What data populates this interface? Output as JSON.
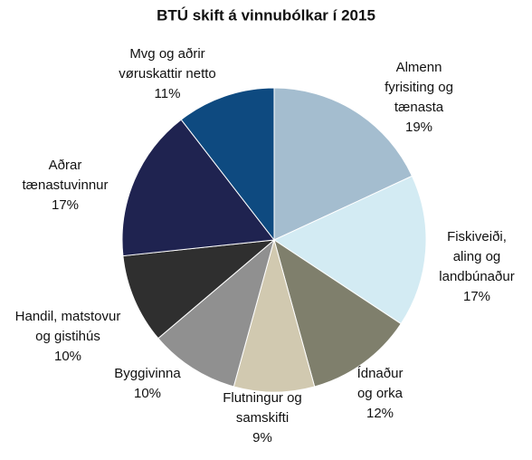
{
  "chart_data": {
    "type": "pie",
    "title": "BTÚ skift á vinnubólkar í 2015",
    "categories": [
      [
        "Almenn",
        "fyrisiting og",
        "tænasta"
      ],
      [
        "Fiskiveiði,",
        "aling og",
        "landbúnaður"
      ],
      [
        "Ídnaður",
        "og orka"
      ],
      [
        "Flutningur og",
        "samskifti"
      ],
      [
        "Byggivinna"
      ],
      [
        "Handil, matstovur",
        "og gistihús"
      ],
      [
        "Aðrar",
        "tænastuvinnur"
      ],
      [
        "Mvg og aðrir",
        "vøruskattir netto"
      ]
    ],
    "values": [
      19,
      17,
      12,
      9,
      10,
      10,
      17,
      11
    ],
    "value_labels": [
      "19%",
      "17%",
      "12%",
      "9%",
      "10%",
      "10%",
      "17%",
      "11%"
    ],
    "colors": [
      "#a4bdcf",
      "#d3ebf3",
      "#7f7f6c",
      "#d1c9b0",
      "#909090",
      "#2f2f2f",
      "#1f2350",
      "#0e4a80"
    ]
  }
}
